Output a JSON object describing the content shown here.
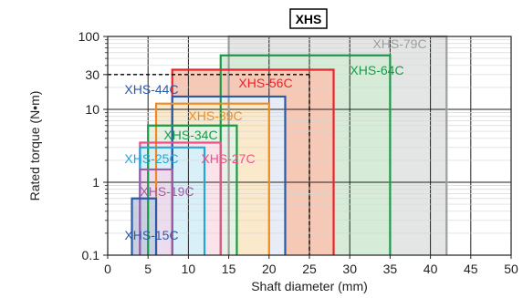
{
  "chart_data": {
    "type": "area",
    "title": "XHS",
    "xlabel": "Shaft diameter (mm)",
    "ylabel": "Rated torque (N•m)",
    "xlim": [
      0,
      50
    ],
    "ylim": [
      0.1,
      100
    ],
    "yscale": "log",
    "grid": true,
    "x_ticks": [
      0,
      5,
      10,
      15,
      20,
      25,
      30,
      35,
      40,
      45,
      50
    ],
    "y_ticks": [
      {
        "value": 0.1,
        "label": "0.1"
      },
      {
        "value": 1,
        "label": "1"
      },
      {
        "value": 10,
        "label": "10"
      },
      {
        "value": 30,
        "label": "30"
      },
      {
        "value": 100,
        "label": "100"
      }
    ],
    "reference": {
      "x": 25,
      "y": 30
    },
    "series": [
      {
        "name": "XHS-79C",
        "x_min": 15,
        "x_max": 42,
        "max_torque": 100,
        "color": "#9e9e9e",
        "fill": "#e4e6e6"
      },
      {
        "name": "XHS-64C",
        "x_min": 14,
        "x_max": 35,
        "max_torque": 55,
        "color": "#1a9a48",
        "fill": "#d6ecd9"
      },
      {
        "name": "XHS-56C",
        "x_min": 8,
        "x_max": 28,
        "max_torque": 35,
        "color": "#e8242c",
        "fill": "#f6c8b6"
      },
      {
        "name": "XHS-44C",
        "x_min": 8,
        "x_max": 22,
        "max_torque": 15,
        "color": "#2a5aa8",
        "fill": "#e6edf6"
      },
      {
        "name": "XHS-39C",
        "x_min": 6,
        "x_max": 20,
        "max_torque": 12,
        "color": "#f08a1e",
        "fill": "#fbe9cc"
      },
      {
        "name": "XHS-34C",
        "x_min": 5,
        "x_max": 16,
        "max_torque": 6,
        "color": "#1a9a48",
        "fill": "#e6f2e3"
      },
      {
        "name": "XHS-27C",
        "x_min": 4,
        "x_max": 14,
        "max_torque": 3.5,
        "color": "#ef4f8a",
        "fill": "#fbe3ea"
      },
      {
        "name": "XHS-25C",
        "x_min": 4,
        "x_max": 12,
        "max_torque": 3,
        "color": "#21a7d8",
        "fill": "#d9f0f9"
      },
      {
        "name": "XHS-19C",
        "x_min": 4,
        "x_max": 8,
        "max_torque": 1.5,
        "color": "#a05ca6",
        "fill": "#ecdcee"
      },
      {
        "name": "XHS-15C",
        "x_min": 3,
        "x_max": 6,
        "max_torque": 0.6,
        "color": "#2a5aa8",
        "fill": "#c7d0e0"
      }
    ]
  }
}
